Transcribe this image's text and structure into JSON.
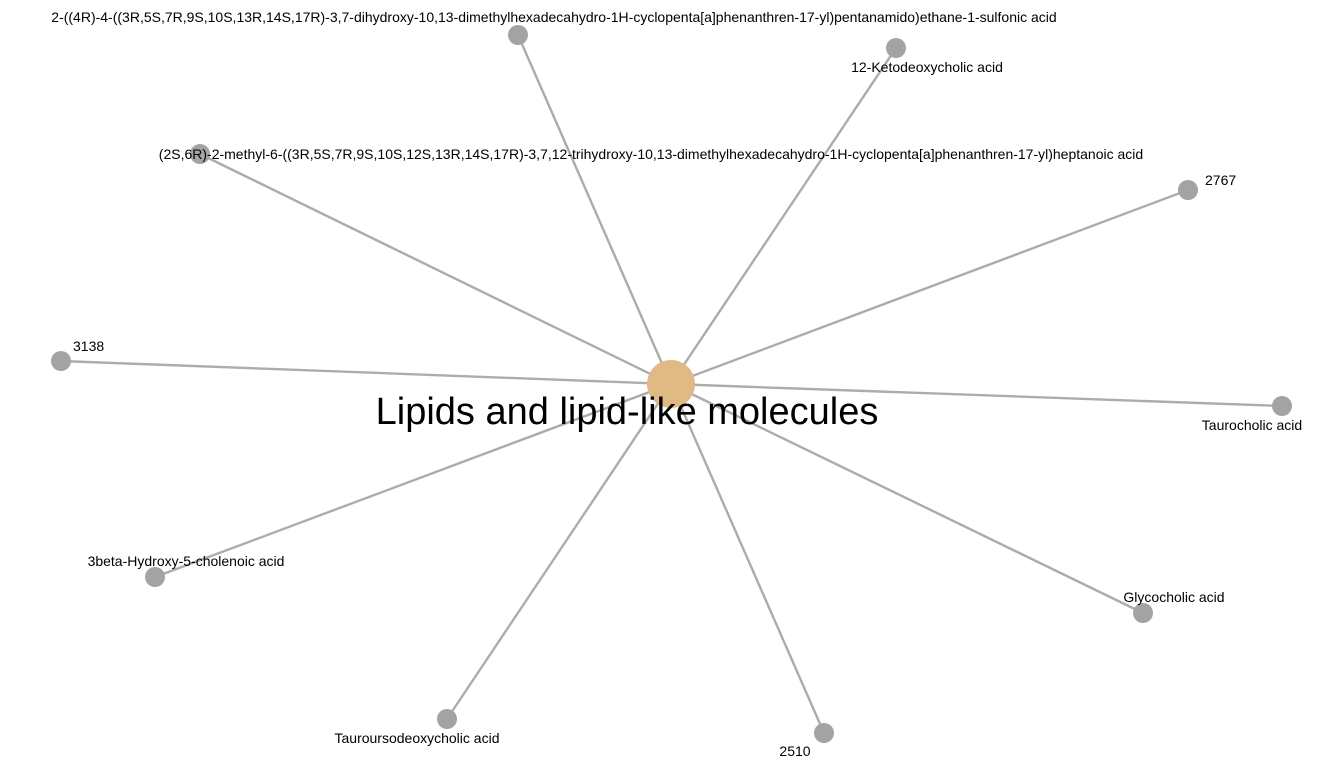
{
  "network": {
    "hub": {
      "label": "Lipids and lipid-like molecules",
      "color": "#e0b985"
    },
    "leaf_color": "#a3a3a3",
    "edge_color": "#9e9e9e",
    "nodes": [
      {
        "id": "n1",
        "label": "2-((4R)-4-((3R,5S,7R,9S,10S,13R,14S,17R)-3,7-dihydroxy-10,13-dimethylhexadecahydro-1H-cyclopenta[a]phenanthren-17-yl)pentanamido)ethane-1-sulfonic acid"
      },
      {
        "id": "n2",
        "label": "12-Ketodeoxycholic acid"
      },
      {
        "id": "n3",
        "label": "(2S,6R)-2-methyl-6-((3R,5S,7R,9S,10S,12S,13R,14S,17R)-3,7,12-trihydroxy-10,13-dimethylhexadecahydro-1H-cyclopenta[a]phenanthren-17-yl)heptanoic acid"
      },
      {
        "id": "n4",
        "label": "2767"
      },
      {
        "id": "n5",
        "label": "3138"
      },
      {
        "id": "n6",
        "label": "Taurocholic acid"
      },
      {
        "id": "n7",
        "label": "3beta-Hydroxy-5-cholenoic acid"
      },
      {
        "id": "n8",
        "label": "Glycocholic acid"
      },
      {
        "id": "n9",
        "label": "Tauroursodeoxycholic acid"
      },
      {
        "id": "n10",
        "label": "2510"
      }
    ]
  }
}
